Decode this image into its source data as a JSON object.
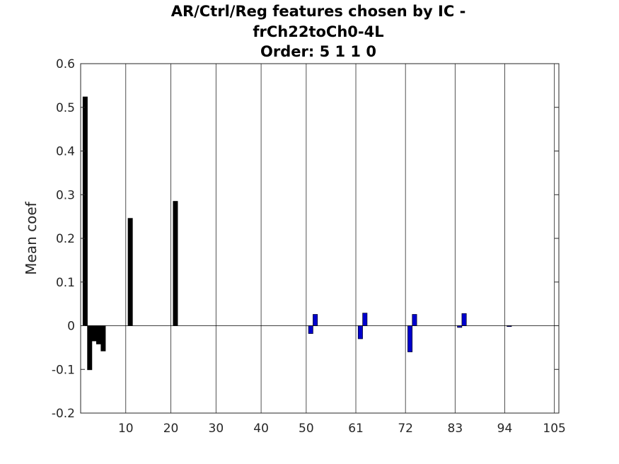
{
  "chart_data": {
    "type": "bar",
    "title": [
      "AR/Ctrl/Reg features chosen by IC -",
      "frCh22toCh0-4L",
      "Order: 5 1 1 0"
    ],
    "xlabel": "",
    "ylabel": "Mean coef",
    "xlim": [
      0,
      106
    ],
    "ylim": [
      -0.2,
      0.6
    ],
    "y_ticks": [
      -0.2,
      -0.1,
      0,
      0.1,
      0.2,
      0.3,
      0.4,
      0.5,
      0.6
    ],
    "y_tick_labels": [
      "-0.2",
      "-0.1",
      "0",
      "0.1",
      "0.2",
      "0.3",
      "0.4",
      "0.5",
      "0.6"
    ],
    "x_ticks": [
      10,
      20,
      30,
      40,
      50,
      61,
      72,
      83,
      94,
      105
    ],
    "x_tick_labels": [
      "10",
      "20",
      "30",
      "40",
      "50",
      "61",
      "72",
      "83",
      "94",
      "105"
    ],
    "grid": "vertical lines at x ticks",
    "bar_width": 1,
    "series": [
      {
        "color": "#000000",
        "x": [
          1,
          2,
          3,
          4,
          5,
          11,
          21
        ],
        "values": [
          0.524,
          -0.101,
          -0.035,
          -0.042,
          -0.058,
          0.246,
          0.285
        ]
      },
      {
        "color": "#0000cc",
        "x": [
          51,
          52,
          62,
          63,
          73,
          74,
          84,
          85,
          95
        ],
        "values": [
          -0.018,
          0.026,
          -0.03,
          0.029,
          -0.06,
          0.026,
          -0.004,
          0.028,
          -0.002
        ]
      }
    ]
  }
}
